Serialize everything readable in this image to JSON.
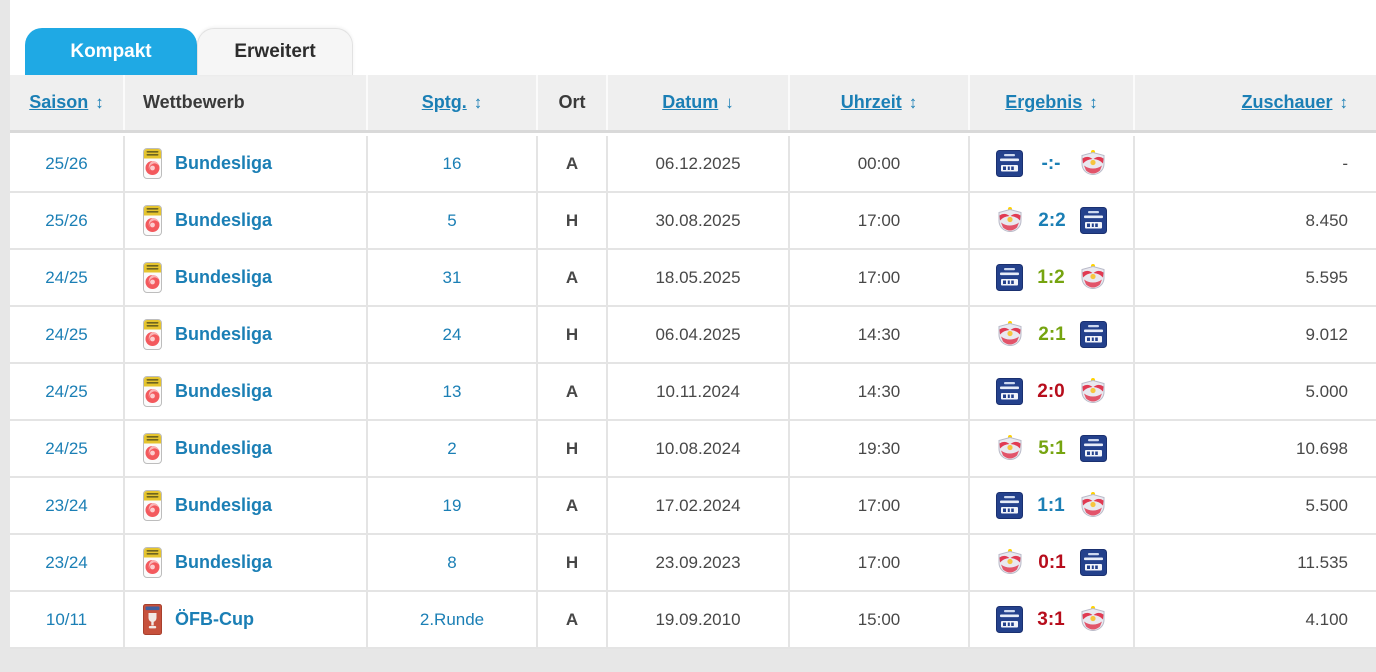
{
  "tabs": [
    {
      "label": "Kompakt",
      "active": true
    },
    {
      "label": "Erweitert",
      "active": false
    }
  ],
  "table": {
    "columns": [
      {
        "label": "Saison",
        "sortable": true,
        "sort_icon": "↕",
        "align": "center"
      },
      {
        "label": "Wettbewerb",
        "sortable": false,
        "sort_icon": "",
        "align": "left"
      },
      {
        "label": "Sptg.",
        "sortable": true,
        "sort_icon": "↕",
        "align": "center"
      },
      {
        "label": "Ort",
        "sortable": false,
        "sort_icon": "",
        "align": "center"
      },
      {
        "label": "Datum",
        "sortable": true,
        "sort_icon": "↓",
        "align": "center"
      },
      {
        "label": "Uhrzeit",
        "sortable": true,
        "sort_icon": "↕",
        "align": "center"
      },
      {
        "label": "Ergebnis",
        "sortable": true,
        "sort_icon": "↕",
        "align": "center"
      },
      {
        "label": "Zuschauer",
        "sortable": true,
        "sort_icon": "↕",
        "align": "right"
      }
    ],
    "rows": [
      {
        "saison": "25/26",
        "wettbewerb": "Bundesliga",
        "comp_logo": "bundesliga",
        "sptg": "16",
        "ort": "A",
        "datum": "06.12.2025",
        "uhrzeit": "00:00",
        "home_logo": "blau-weiss-linz",
        "score": "-:-",
        "result": "upcoming",
        "away_logo": "red-bull-salzburg",
        "zuschauer": "-"
      },
      {
        "saison": "25/26",
        "wettbewerb": "Bundesliga",
        "comp_logo": "bundesliga",
        "sptg": "5",
        "ort": "H",
        "datum": "30.08.2025",
        "uhrzeit": "17:00",
        "home_logo": "red-bull-salzburg",
        "score": "2:2",
        "result": "draw",
        "away_logo": "blau-weiss-linz",
        "zuschauer": "8.450"
      },
      {
        "saison": "24/25",
        "wettbewerb": "Bundesliga",
        "comp_logo": "bundesliga",
        "sptg": "31",
        "ort": "A",
        "datum": "18.05.2025",
        "uhrzeit": "17:00",
        "home_logo": "blau-weiss-linz",
        "score": "1:2",
        "result": "win",
        "away_logo": "red-bull-salzburg",
        "zuschauer": "5.595"
      },
      {
        "saison": "24/25",
        "wettbewerb": "Bundesliga",
        "comp_logo": "bundesliga",
        "sptg": "24",
        "ort": "H",
        "datum": "06.04.2025",
        "uhrzeit": "14:30",
        "home_logo": "red-bull-salzburg",
        "score": "2:1",
        "result": "win",
        "away_logo": "blau-weiss-linz",
        "zuschauer": "9.012"
      },
      {
        "saison": "24/25",
        "wettbewerb": "Bundesliga",
        "comp_logo": "bundesliga",
        "sptg": "13",
        "ort": "A",
        "datum": "10.11.2024",
        "uhrzeit": "14:30",
        "home_logo": "blau-weiss-linz",
        "score": "2:0",
        "result": "loss",
        "away_logo": "red-bull-salzburg",
        "zuschauer": "5.000"
      },
      {
        "saison": "24/25",
        "wettbewerb": "Bundesliga",
        "comp_logo": "bundesliga",
        "sptg": "2",
        "ort": "H",
        "datum": "10.08.2024",
        "uhrzeit": "19:30",
        "home_logo": "red-bull-salzburg",
        "score": "5:1",
        "result": "win",
        "away_logo": "blau-weiss-linz",
        "zuschauer": "10.698"
      },
      {
        "saison": "23/24",
        "wettbewerb": "Bundesliga",
        "comp_logo": "bundesliga",
        "sptg": "19",
        "ort": "A",
        "datum": "17.02.2024",
        "uhrzeit": "17:00",
        "home_logo": "blau-weiss-linz",
        "score": "1:1",
        "result": "draw",
        "away_logo": "red-bull-salzburg",
        "zuschauer": "5.500"
      },
      {
        "saison": "23/24",
        "wettbewerb": "Bundesliga",
        "comp_logo": "bundesliga",
        "sptg": "8",
        "ort": "H",
        "datum": "23.09.2023",
        "uhrzeit": "17:00",
        "home_logo": "red-bull-salzburg",
        "score": "0:1",
        "result": "loss",
        "away_logo": "blau-weiss-linz",
        "zuschauer": "11.535"
      },
      {
        "saison": "10/11",
        "wettbewerb": "ÖFB-Cup",
        "comp_logo": "oefb-cup",
        "sptg": "2.Runde",
        "ort": "A",
        "datum": "19.09.2010",
        "uhrzeit": "15:00",
        "home_logo": "blau-weiss-linz",
        "score": "3:1",
        "result": "loss",
        "away_logo": "red-bull-salzburg",
        "zuschauer": "4.100"
      }
    ]
  },
  "icons": {
    "bundesliga": "bundesliga-badge-icon",
    "oefb-cup": "oefb-cup-badge-icon",
    "blau-weiss-linz": "blau-weiss-linz-crest-icon",
    "red-bull-salzburg": "red-bull-salzburg-crest-icon"
  },
  "colors": {
    "tab_active": "#1fa9e4",
    "link": "#1b7fb5",
    "win": "#76a410",
    "loss": "#b70d1c",
    "draw": "#1b7fb5",
    "header_bg": "#efefef",
    "page_bg": "#e7e7e7"
  }
}
